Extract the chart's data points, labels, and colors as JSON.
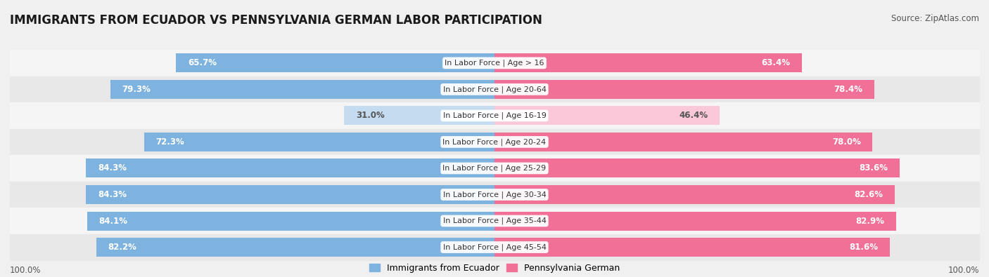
{
  "title": "IMMIGRANTS FROM ECUADOR VS PENNSYLVANIA GERMAN LABOR PARTICIPATION",
  "source": "Source: ZipAtlas.com",
  "categories": [
    "In Labor Force | Age > 16",
    "In Labor Force | Age 20-64",
    "In Labor Force | Age 16-19",
    "In Labor Force | Age 20-24",
    "In Labor Force | Age 25-29",
    "In Labor Force | Age 30-34",
    "In Labor Force | Age 35-44",
    "In Labor Force | Age 45-54"
  ],
  "ecuador_values": [
    65.7,
    79.3,
    31.0,
    72.3,
    84.3,
    84.3,
    84.1,
    82.2
  ],
  "pa_german_values": [
    63.4,
    78.4,
    46.4,
    78.0,
    83.6,
    82.6,
    82.9,
    81.6
  ],
  "ecuador_color": "#7EB3E0",
  "pa_german_color": "#F07098",
  "ecuador_light_color": "#C5DCF0",
  "pa_german_light_color": "#FAC8D8",
  "background_color": "#f0f0f0",
  "row_bg_colors": [
    "#f5f5f5",
    "#e8e8e8"
  ],
  "label_color_dark": "#555555",
  "label_color_white": "#ffffff",
  "axis_label_left": "100.0%",
  "axis_label_right": "100.0%",
  "legend_ecuador": "Immigrants from Ecuador",
  "legend_pa": "Pennsylvania German",
  "title_fontsize": 12,
  "source_fontsize": 8.5,
  "bar_label_fontsize": 8.5,
  "category_fontsize": 8,
  "legend_fontsize": 9,
  "axis_fontsize": 8.5,
  "max_value": 100.0
}
